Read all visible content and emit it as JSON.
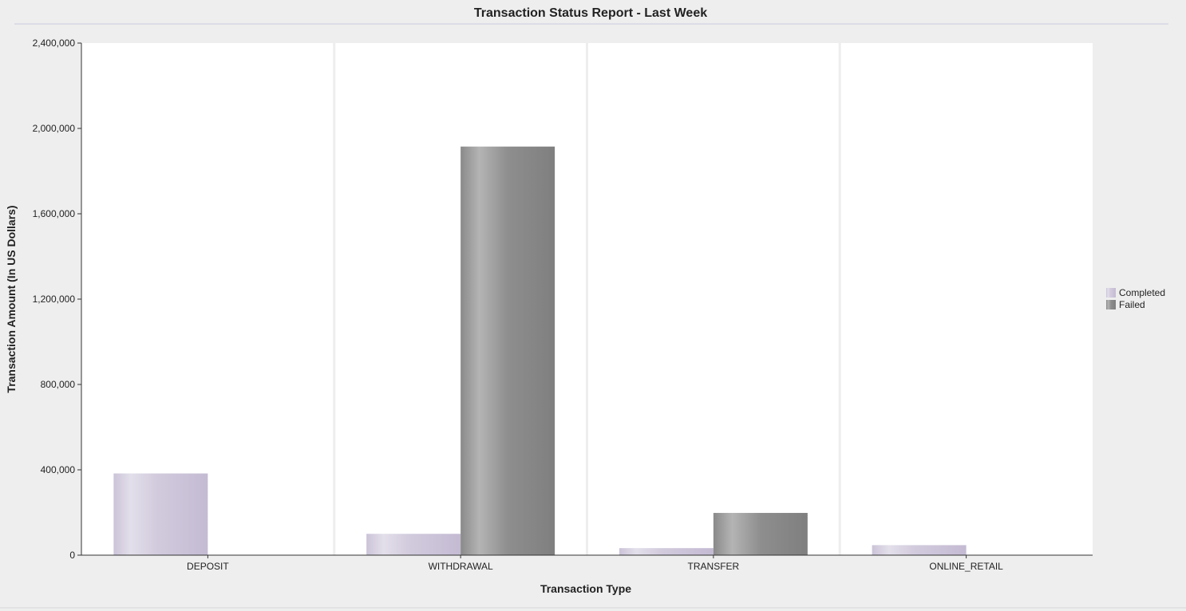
{
  "chart_data": {
    "type": "bar",
    "title": "Transaction Status Report - Last Week",
    "xlabel": "Transaction Type",
    "ylabel": "Transaction Amount (In US Dollars)",
    "categories": [
      "DEPOSIT",
      "WITHDRAWAL",
      "TRANSFER",
      "ONLINE_RETAIL"
    ],
    "series": [
      {
        "name": "Completed",
        "values": [
          383000,
          100000,
          33000,
          47000
        ],
        "color": "#cfc8da"
      },
      {
        "name": "Failed",
        "values": [
          0,
          1915000,
          198000,
          0
        ],
        "color": "#8c8c8c"
      }
    ],
    "ylim": [
      0,
      2400000
    ],
    "yticks": [
      0,
      400000,
      800000,
      1200000,
      1600000,
      2000000,
      2400000
    ],
    "ytick_labels": [
      "0",
      "400,000",
      "800,000",
      "1,200,000",
      "1,600,000",
      "2,000,000",
      "2,400,000"
    ],
    "legend_position": "right",
    "grid": false,
    "category_separators": true,
    "colors": {
      "background": "#eeeeee",
      "plot_background": "#ffffff",
      "separator": "#eeeeee",
      "title_rule": "#c8cbe0"
    }
  }
}
